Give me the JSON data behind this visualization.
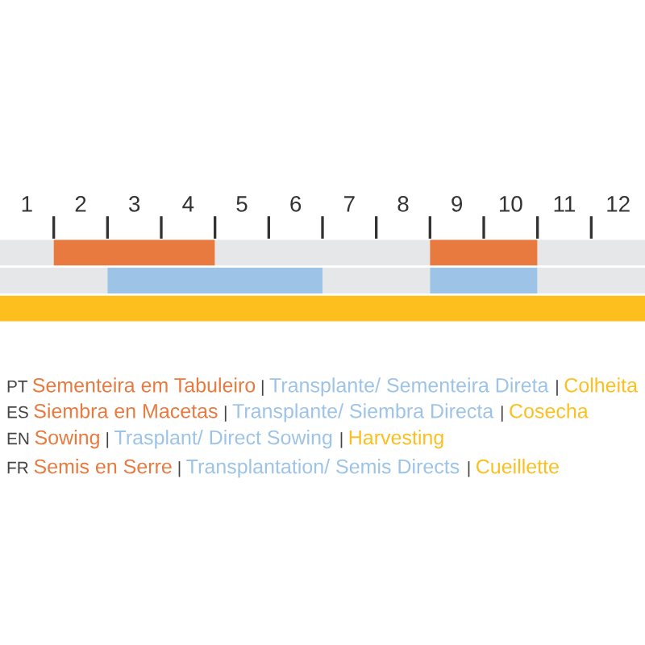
{
  "chart_data": {
    "type": "bar",
    "orientation": "horizontal",
    "stacked": true,
    "categories": [
      null,
      null,
      null
    ],
    "series": [
      {
        "colors": [
          "#e6e7e8",
          "#e6e7e8",
          "#fdbf1e"
        ],
        "values": [
          1,
          2,
          12
        ]
      },
      {
        "colors": [
          "#e8793f",
          "#9dc3e6",
          "#fdbf1e"
        ],
        "values": [
          3,
          4,
          0
        ]
      },
      {
        "colors": [
          "#e6e7e8",
          "#e6e7e8",
          "#e6e7e8"
        ],
        "values": [
          4,
          2,
          0
        ]
      },
      {
        "colors": [
          "#e8793f",
          "#9dc3e6",
          "#fdbf1e"
        ],
        "values": [
          2,
          2,
          0
        ]
      },
      {
        "colors": [
          "#e6e7e8",
          "#e6e7e8",
          "#e6e7e8"
        ],
        "values": [
          2,
          2,
          0
        ]
      }
    ],
    "xlim": [
      0,
      12
    ],
    "xticks": [
      {
        "value": 0.5,
        "label": "1"
      },
      {
        "value": 1.5,
        "label": "2"
      },
      {
        "value": 2.5,
        "label": "3"
      },
      {
        "value": 3.5,
        "label": "4"
      },
      {
        "value": 4.5,
        "label": "5"
      },
      {
        "value": 5.5,
        "label": "6"
      },
      {
        "value": 6.5,
        "label": "7"
      },
      {
        "value": 7.5,
        "label": "8"
      },
      {
        "value": 8.5,
        "label": "9"
      },
      {
        "value": 9.5,
        "label": "10"
      },
      {
        "value": 10.5,
        "label": "11"
      },
      {
        "value": 11.5,
        "label": "12"
      },
      {
        "value": 1,
        "label": null
      },
      {
        "value": 2,
        "label": null
      },
      {
        "value": 3,
        "label": null
      },
      {
        "value": 4,
        "label": null
      },
      {
        "value": 5,
        "label": null
      },
      {
        "value": 6,
        "label": null
      },
      {
        "value": 7,
        "label": null
      },
      {
        "value": 8,
        "label": null
      },
      {
        "value": 9,
        "label": null
      },
      {
        "value": 10,
        "label": null
      },
      {
        "value": 11,
        "label": null
      }
    ],
    "tick_labels": "x",
    "annotations": [
      "PT Sementeira em Tabuleiro | Transplante/ Sementeira Direta | Colheita",
      "ES Siembra en Macetas | Transplante/ Siembra Directa | Cosecha",
      "EN Sowing | Trasplant/ Direct Sowing | Harvesting",
      "FR Semis en Serre | Transplantation/ Semis Directs | Cueillette"
    ]
  }
}
